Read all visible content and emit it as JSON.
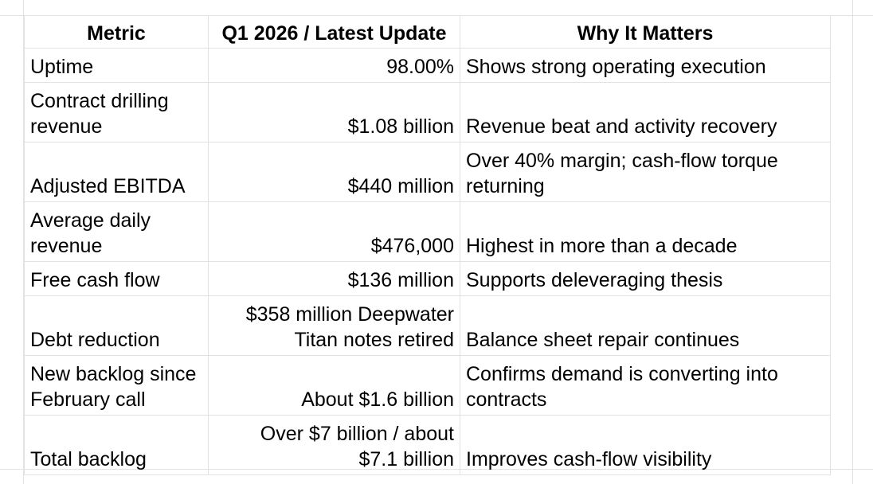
{
  "table": {
    "headers": [
      "Metric",
      "Q1 2026 / Latest Update",
      "Why It Matters"
    ],
    "rows": [
      {
        "metric": [
          "Uptime"
        ],
        "value": [
          "98.00%"
        ],
        "why": [
          "Shows strong operating execution"
        ]
      },
      {
        "metric": [
          "Contract drilling",
          "revenue"
        ],
        "value": [
          "$1.08 billion"
        ],
        "why": [
          "Revenue beat and activity recovery"
        ]
      },
      {
        "metric": [
          "Adjusted EBITDA"
        ],
        "value": [
          "$440 million"
        ],
        "why": [
          "Over 40% margin; cash-flow torque",
          "returning"
        ]
      },
      {
        "metric": [
          "Average daily",
          "revenue"
        ],
        "value": [
          "$476,000"
        ],
        "why": [
          "Highest in more than a decade"
        ]
      },
      {
        "metric": [
          "Free cash flow"
        ],
        "value": [
          "$136 million"
        ],
        "why": [
          "Supports deleveraging thesis"
        ]
      },
      {
        "metric": [
          "Debt reduction"
        ],
        "value": [
          "$358 million Deepwater",
          "Titan notes retired"
        ],
        "why": [
          "Balance sheet repair continues"
        ]
      },
      {
        "metric": [
          "New backlog since",
          "February call"
        ],
        "value": [
          "About $1.6 billion"
        ],
        "why": [
          "Confirms demand is converting into",
          "contracts"
        ]
      },
      {
        "metric": [
          "Total backlog"
        ],
        "value": [
          "Over $7 billion / about",
          "$7.1 billion"
        ],
        "why": [
          "Improves cash-flow visibility"
        ]
      }
    ]
  }
}
